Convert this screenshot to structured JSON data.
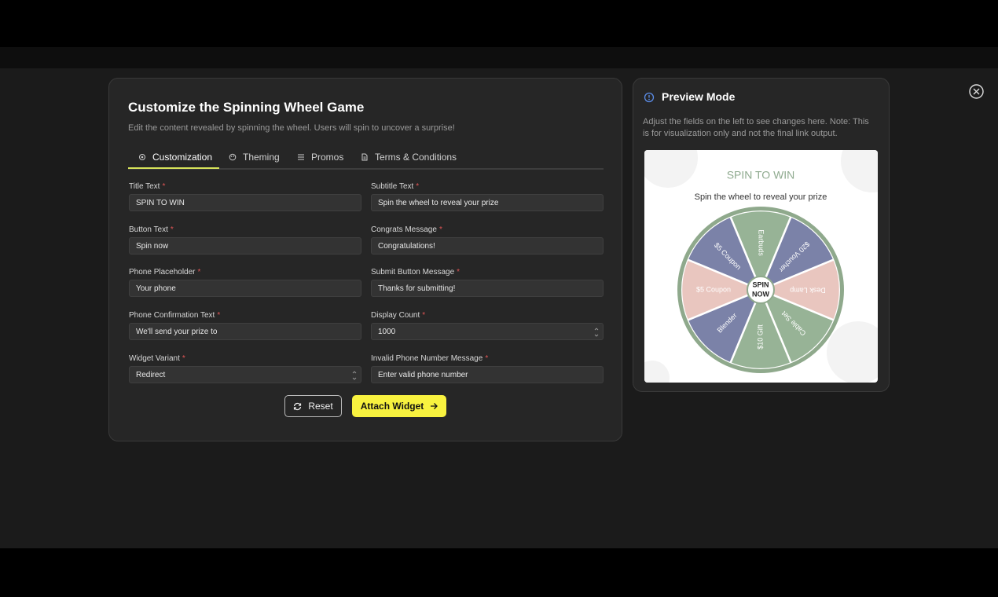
{
  "header": {
    "title": "Customize the Spinning Wheel Game",
    "subtitle": "Edit the content revealed by spinning the wheel. Users will spin to uncover a surprise!"
  },
  "tabs": [
    "Customization",
    "Theming",
    "Promos",
    "Terms & Conditions"
  ],
  "required_mark": "*",
  "fields": [
    {
      "label": "Title Text",
      "value": "SPIN TO WIN"
    },
    {
      "label": "Subtitle Text",
      "value": "Spin the wheel to reveal your prize"
    },
    {
      "label": "Button Text",
      "value": "Spin now"
    },
    {
      "label": "Congrats Message",
      "value": "Congratulations!"
    },
    {
      "label": "Phone Placeholder",
      "value": "Your phone"
    },
    {
      "label": "Submit Button Message",
      "value": "Thanks for submitting!"
    },
    {
      "label": "Phone Confirmation Text",
      "value": "We'll send your prize to"
    },
    {
      "label": "Display Count",
      "value": "1000"
    },
    {
      "label": "Widget Variant",
      "value": "Redirect"
    },
    {
      "label": "Invalid Phone Number Message",
      "value": "Enter valid phone number"
    }
  ],
  "buttons": {
    "reset": "Reset",
    "attach": "Attach Widget"
  },
  "preview": {
    "title": "Preview Mode",
    "description": "Adjust the fields on the left to see changes here. Note: This is for visualization only and not the final link output.",
    "card_title": "SPIN TO WIN",
    "card_subtitle": "Spin the wheel to reveal your prize",
    "center_label": [
      "SPIN",
      "NOW"
    ],
    "segments": [
      {
        "label": "Earbuds",
        "color": "#97b396"
      },
      {
        "label": "$20 Voucher",
        "color": "#7b82a8"
      },
      {
        "label": "Desk Lamp",
        "color": "#e9c6bf"
      },
      {
        "label": "Cable Set",
        "color": "#97b396"
      },
      {
        "label": "$10 Gift",
        "color": "#97b396"
      },
      {
        "label": "Blender",
        "color": "#7b82a8"
      },
      {
        "label": "$5 Coupon",
        "color": "#e9c6bf"
      },
      {
        "label": "$5 Coupon",
        "color": "#7b82a8"
      }
    ]
  }
}
